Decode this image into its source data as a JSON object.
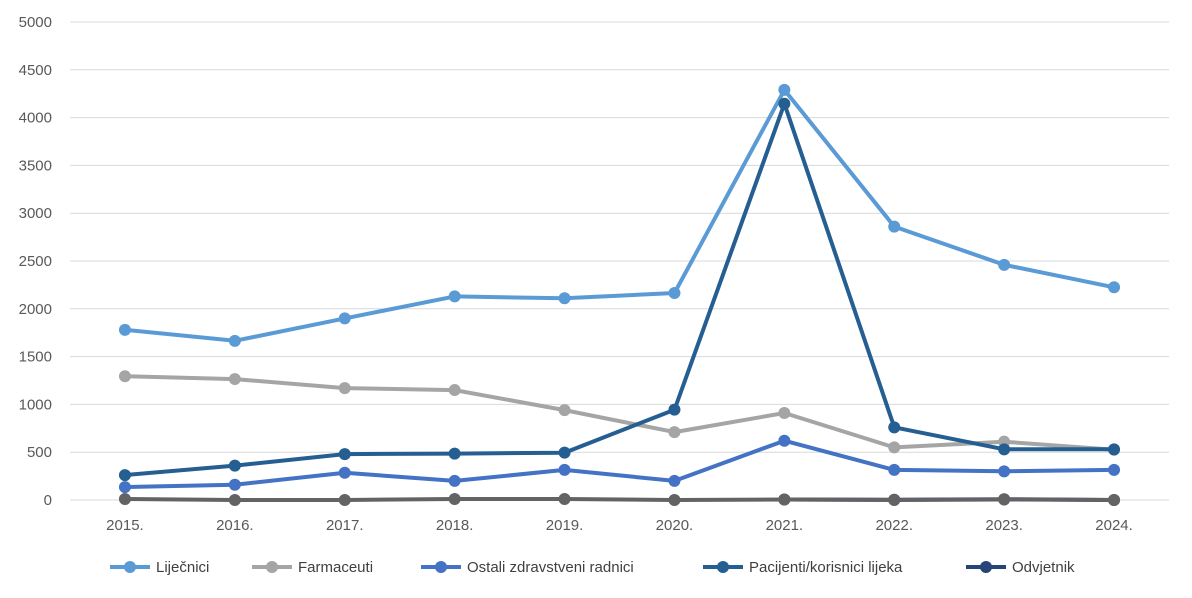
{
  "chart_data": {
    "type": "line",
    "title": "",
    "xlabel": "",
    "ylabel": "",
    "categories": [
      "2015.",
      "2016.",
      "2017.",
      "2018.",
      "2019.",
      "2020.",
      "2021.",
      "2022.",
      "2023.",
      "2024."
    ],
    "ylim": [
      0,
      5000
    ],
    "yticks": [
      0,
      500,
      1000,
      1500,
      2000,
      2500,
      3000,
      3500,
      4000,
      4500,
      5000
    ],
    "grid": true,
    "legend": "bottom",
    "series": [
      {
        "name": "Liječnici",
        "color": "#5B9BD5",
        "values": [
          1780,
          1665,
          1900,
          2130,
          2110,
          2165,
          4290,
          2860,
          2460,
          2225
        ]
      },
      {
        "name": "Farmaceuti",
        "color": "#A5A5A5",
        "values": [
          1295,
          1265,
          1170,
          1150,
          940,
          710,
          910,
          550,
          610,
          525
        ]
      },
      {
        "name": "Ostali zdravstveni radnici",
        "color": "#4472C4",
        "values": [
          135,
          160,
          285,
          200,
          315,
          200,
          620,
          315,
          300,
          315
        ]
      },
      {
        "name": "Pacijenti/korisnici lijeka",
        "color": "#255E91",
        "values": [
          260,
          360,
          480,
          485,
          495,
          945,
          4145,
          760,
          530,
          530
        ]
      },
      {
        "name": "Odvjetnik",
        "color": "#264478",
        "values": [
          null,
          null,
          null,
          null,
          null,
          null,
          5,
          3,
          8,
          0
        ]
      },
      {
        "name": "",
        "color": "#636363",
        "values": [
          10,
          0,
          0,
          10,
          10,
          0,
          5,
          0,
          5,
          0
        ]
      }
    ]
  }
}
